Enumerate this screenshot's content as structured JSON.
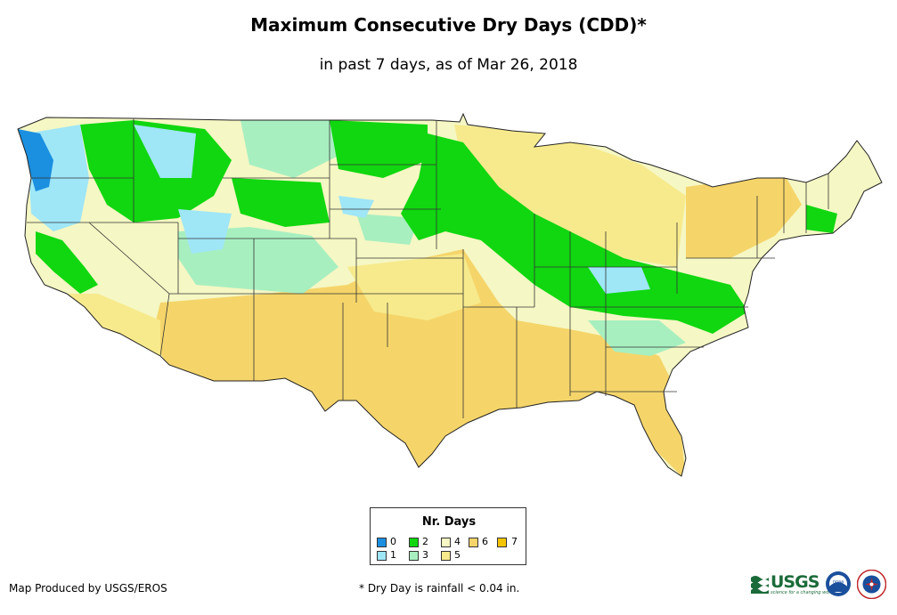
{
  "title": "Maximum Consecutive Dry Days (CDD)*",
  "subtitle": "in past 7 days, as of Mar 26, 2018",
  "legend": {
    "title": "Nr. Days",
    "items": [
      {
        "label": "0",
        "color": "#1b8fe0"
      },
      {
        "label": "1",
        "color": "#9fe6f7"
      },
      {
        "label": "2",
        "color": "#10d710"
      },
      {
        "label": "3",
        "color": "#a8efc0"
      },
      {
        "label": "4",
        "color": "#f5f7c4"
      },
      {
        "label": "5",
        "color": "#f7ea8c"
      },
      {
        "label": "6",
        "color": "#f5d56a"
      },
      {
        "label": "7",
        "color": "#f5c400"
      }
    ]
  },
  "footer": {
    "producer": "Map Produced by USGS/EROS",
    "note": "* Dry Day is rainfall < 0.04 in."
  },
  "logos": {
    "usgs": "USGS",
    "usgs_tagline": "science for a changing world",
    "noaa": "noaa",
    "nws": "NATIONAL WEATHER SERVICE"
  }
}
